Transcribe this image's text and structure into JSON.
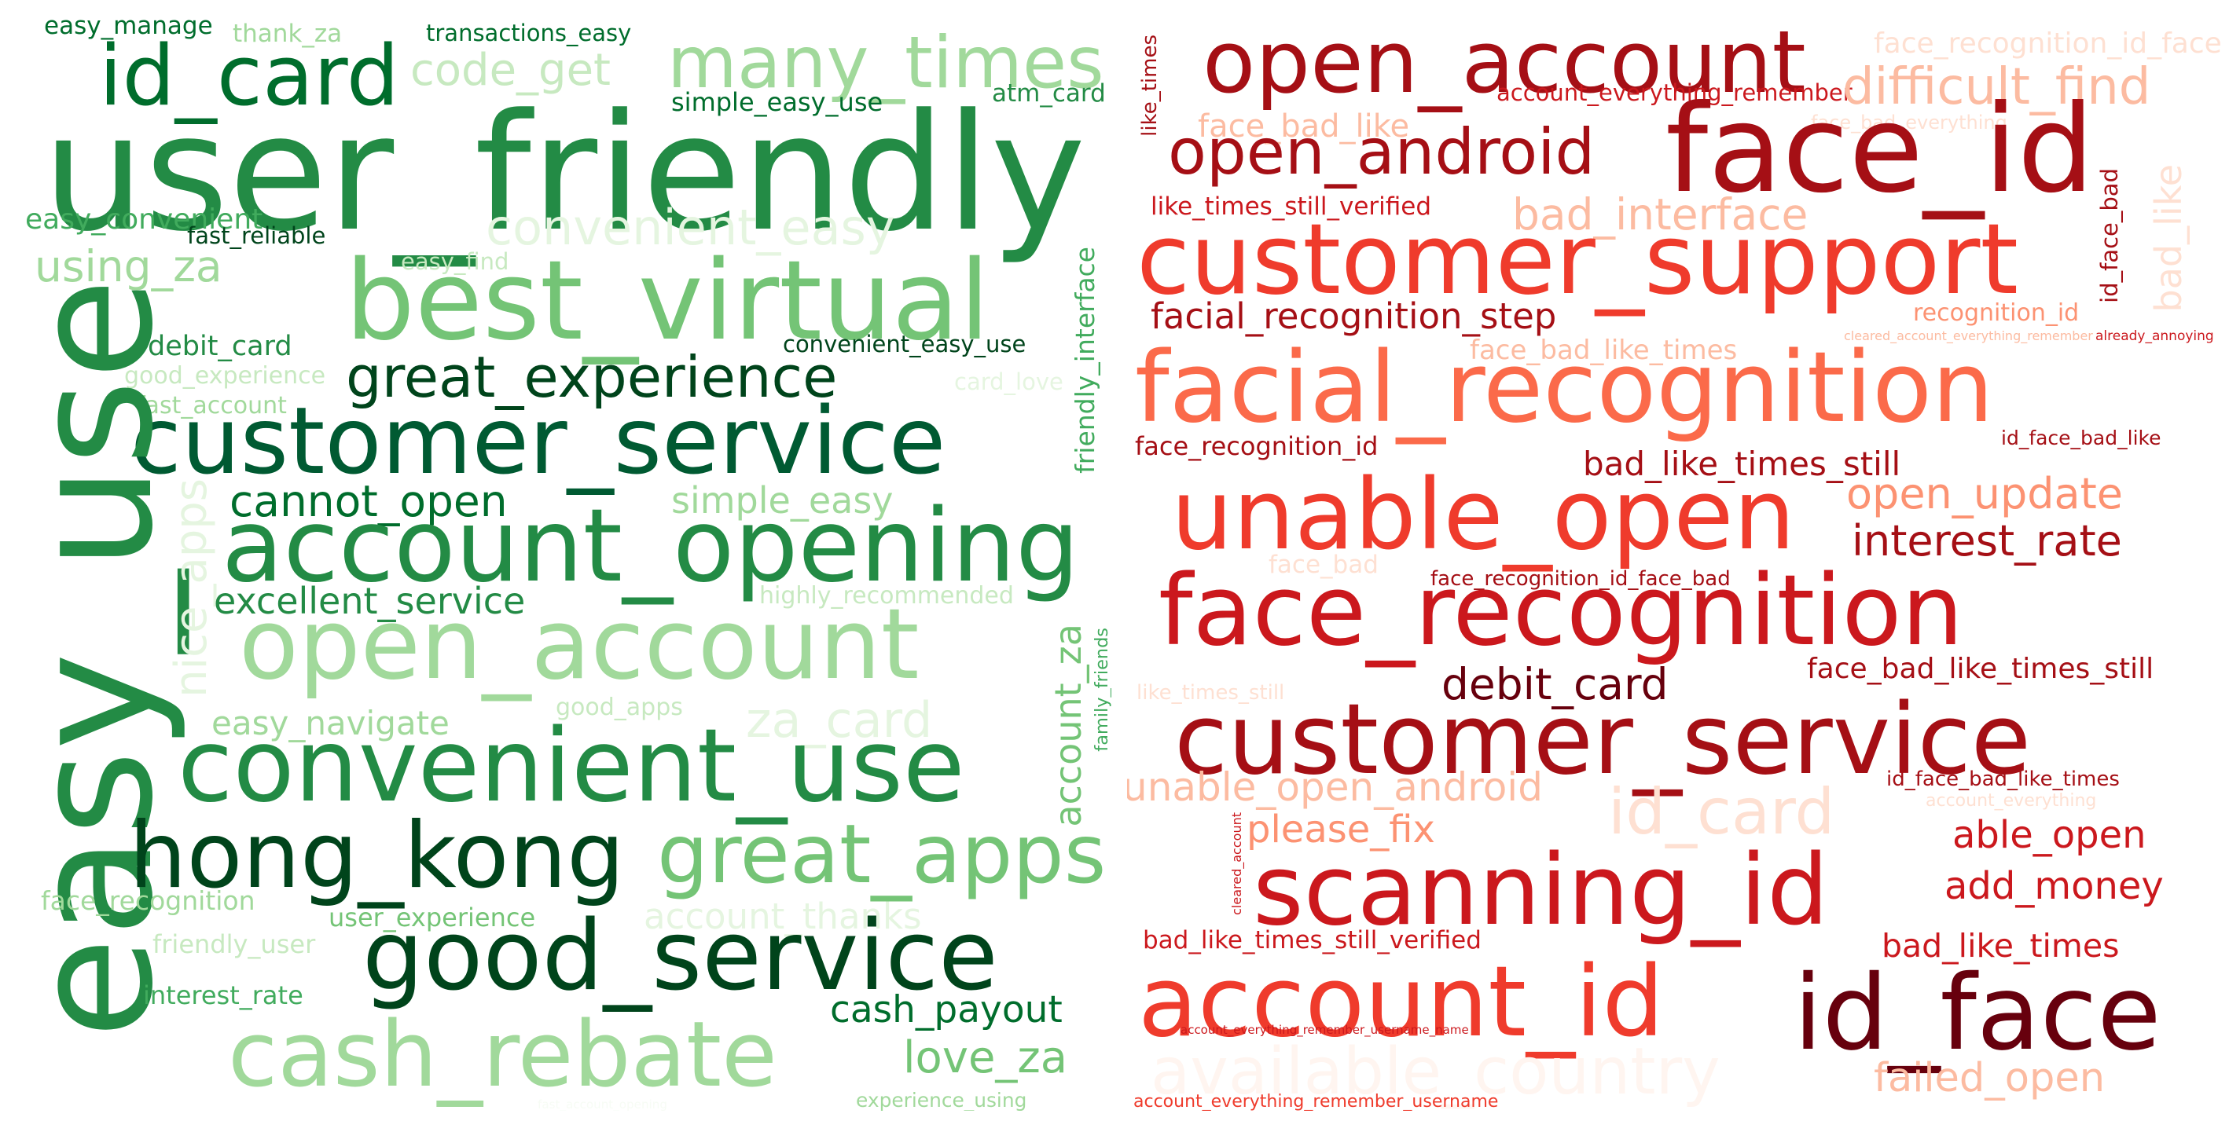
{
  "clouds": [
    {
      "id": "positive",
      "words": [
        {
          "text": "easy_manage",
          "color": "#006d2c"
        },
        {
          "text": "thank_za",
          "color": "#a1d99b"
        },
        {
          "text": "transactions_easy",
          "color": "#006d2c"
        },
        {
          "text": "id_card",
          "color": "#006d2c"
        },
        {
          "text": "code_get",
          "color": "#c7e9c0"
        },
        {
          "text": "many_times",
          "color": "#a1d99b"
        },
        {
          "text": "simple_easy_use",
          "color": "#006d2c"
        },
        {
          "text": "atm_card",
          "color": "#238b45"
        },
        {
          "text": "user_friendly",
          "color": "#238b45"
        },
        {
          "text": "easy_convenient",
          "color": "#41ab5d"
        },
        {
          "text": "fast_reliable",
          "color": "#00441b"
        },
        {
          "text": "convenient_easy",
          "color": "#e5f5e0"
        },
        {
          "text": "using_za",
          "color": "#a1d99b"
        },
        {
          "text": "easy_find",
          "color": "#c7e9c0"
        },
        {
          "text": "best_virtual",
          "color": "#74c476"
        },
        {
          "text": "friendly_interface",
          "color": "#41ab5d"
        },
        {
          "text": "debit_card",
          "color": "#238b45"
        },
        {
          "text": "convenient_easy_use",
          "color": "#00441b"
        },
        {
          "text": "good_experience",
          "color": "#c7e9c0"
        },
        {
          "text": "great_experience",
          "color": "#00441b"
        },
        {
          "text": "card_love",
          "color": "#e5f5e0"
        },
        {
          "text": "fast_account",
          "color": "#a1d99b"
        },
        {
          "text": "customer_service",
          "color": "#005a32"
        },
        {
          "text": "easy_use",
          "color": "#238b45"
        },
        {
          "text": "cannot_open",
          "color": "#006d2c"
        },
        {
          "text": "simple_easy",
          "color": "#a1d99b"
        },
        {
          "text": "nice_apps",
          "color": "#e5f5e0"
        },
        {
          "text": "account_opening",
          "color": "#238b45"
        },
        {
          "text": "excellent_service",
          "color": "#238b45"
        },
        {
          "text": "highly_recommended",
          "color": "#c7e9c0"
        },
        {
          "text": "open_account",
          "color": "#a1d99b"
        },
        {
          "text": "account_za",
          "color": "#74c476"
        },
        {
          "text": "family_friends",
          "color": "#41ab5d"
        },
        {
          "text": "easy_navigate",
          "color": "#a1d99b"
        },
        {
          "text": "good_apps",
          "color": "#c7e9c0"
        },
        {
          "text": "za_card",
          "color": "#e5f5e0"
        },
        {
          "text": "convenient_use",
          "color": "#238b45"
        },
        {
          "text": "hong_kong",
          "color": "#00441b"
        },
        {
          "text": "great_apps",
          "color": "#74c476"
        },
        {
          "text": "face_recognition",
          "color": "#a1d99b"
        },
        {
          "text": "user_experience",
          "color": "#74c476"
        },
        {
          "text": "account_thanks",
          "color": "#e5f5e0"
        },
        {
          "text": "friendly_user",
          "color": "#c7e9c0"
        },
        {
          "text": "good_service",
          "color": "#00441b"
        },
        {
          "text": "interest_rate",
          "color": "#41ab5d"
        },
        {
          "text": "cash_payout",
          "color": "#006d2c"
        },
        {
          "text": "cash_rebate",
          "color": "#a1d99b"
        },
        {
          "text": "love_za",
          "color": "#74c476"
        },
        {
          "text": "experience_using",
          "color": "#a1d99b"
        },
        {
          "text": "fast_account_opening",
          "color": "#f7fcf5"
        }
      ]
    },
    {
      "id": "negative",
      "words": [
        {
          "text": "like_times",
          "color": "#a50f15"
        },
        {
          "text": "open_account",
          "color": "#a50f15"
        },
        {
          "text": "face_recognition_id_face",
          "color": "#fee0d2"
        },
        {
          "text": "account_everything_remember",
          "color": "#cb181d"
        },
        {
          "text": "difficult_find",
          "color": "#fcbba1"
        },
        {
          "text": "face_bad_like",
          "color": "#fcbba1"
        },
        {
          "text": "face_bad_everything",
          "color": "#fee0d2"
        },
        {
          "text": "open_android",
          "color": "#a50f15"
        },
        {
          "text": "face_id",
          "color": "#a50f15"
        },
        {
          "text": "like_times_still_verified",
          "color": "#cb181d"
        },
        {
          "text": "bad_interface",
          "color": "#fcbba1"
        },
        {
          "text": "id_face_bad",
          "color": "#a50f15"
        },
        {
          "text": "bad_like",
          "color": "#fee0d2"
        },
        {
          "text": "customer_support",
          "color": "#ef3b2c"
        },
        {
          "text": "facial_recognition_step",
          "color": "#a50f15"
        },
        {
          "text": "recognition_id",
          "color": "#fc9272"
        },
        {
          "text": "cleared_account_everything_remember",
          "color": "#fcbba1"
        },
        {
          "text": "already_annoying",
          "color": "#cb181d"
        },
        {
          "text": "face_bad_like_times",
          "color": "#fcbba1"
        },
        {
          "text": "facial_recognition",
          "color": "#fb6a4a"
        },
        {
          "text": "face_recognition_id",
          "color": "#a50f15"
        },
        {
          "text": "id_face_bad_like",
          "color": "#a50f15"
        },
        {
          "text": "bad_like_times_still",
          "color": "#a50f15"
        },
        {
          "text": "unable_open",
          "color": "#ef3b2c"
        },
        {
          "text": "open_update",
          "color": "#fc9272"
        },
        {
          "text": "interest_rate",
          "color": "#a50f15"
        },
        {
          "text": "face_bad",
          "color": "#fee0d2"
        },
        {
          "text": "face_recognition_id_face_bad",
          "color": "#a50f15"
        },
        {
          "text": "face_recognition",
          "color": "#cb181d"
        },
        {
          "text": "like_times_still",
          "color": "#fee0d2"
        },
        {
          "text": "debit_card",
          "color": "#67000d"
        },
        {
          "text": "face_bad_like_times_still",
          "color": "#a50f15"
        },
        {
          "text": "customer_service",
          "color": "#a50f15"
        },
        {
          "text": "unable_open_android",
          "color": "#fcbba1"
        },
        {
          "text": "id_card",
          "color": "#fee0d2"
        },
        {
          "text": "id_face_bad_like_times",
          "color": "#a50f15"
        },
        {
          "text": "account_everything",
          "color": "#fee0d2"
        },
        {
          "text": "please_fix",
          "color": "#fc9272"
        },
        {
          "text": "able_open",
          "color": "#cb181d"
        },
        {
          "text": "cleared_account",
          "color": "#cb181d"
        },
        {
          "text": "scanning_id",
          "color": "#cb181d"
        },
        {
          "text": "add_money",
          "color": "#cb181d"
        },
        {
          "text": "bad_like_times_still_verified",
          "color": "#cb181d"
        },
        {
          "text": "bad_like_times",
          "color": "#cb181d"
        },
        {
          "text": "account_id",
          "color": "#ef3b2c"
        },
        {
          "text": "id_face",
          "color": "#67000d"
        },
        {
          "text": "account_everything_remember_username_name",
          "color": "#cb181d"
        },
        {
          "text": "available_country",
          "color": "#fff5f0"
        },
        {
          "text": "failed_open",
          "color": "#fcbba1"
        },
        {
          "text": "account_everything_remember_username",
          "color": "#ef3b2c"
        }
      ]
    }
  ]
}
